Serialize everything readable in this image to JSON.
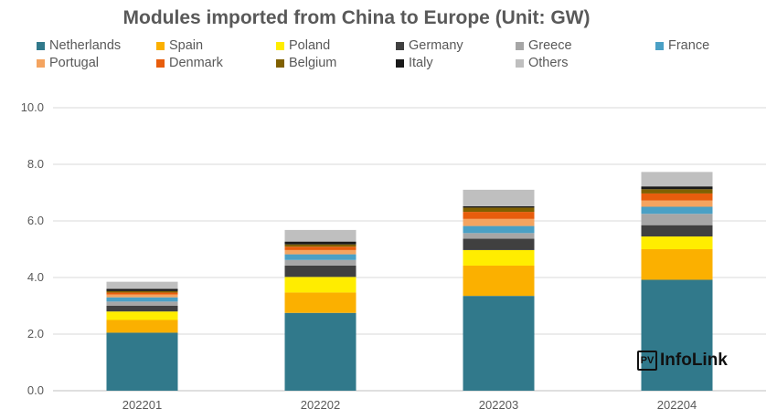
{
  "chart_data": {
    "type": "bar",
    "stacked": true,
    "title": "Modules imported from China to Europe (Unit: GW)",
    "categories": [
      "202201",
      "202202",
      "202203",
      "202204"
    ],
    "ylim": [
      0,
      10
    ],
    "yticks": [
      "0.0",
      "2.0",
      "4.0",
      "6.0",
      "8.0",
      "10.0"
    ],
    "grid": true,
    "legend_position": "top",
    "series": [
      {
        "name": "Netherlands",
        "color": "#31798b",
        "values": [
          2.05,
          2.75,
          3.35,
          3.92
        ]
      },
      {
        "name": "Spain",
        "color": "#fbb000",
        "values": [
          0.45,
          0.72,
          1.07,
          1.08
        ]
      },
      {
        "name": "Poland",
        "color": "#ffed00",
        "values": [
          0.3,
          0.55,
          0.55,
          0.45
        ]
      },
      {
        "name": "Germany",
        "color": "#404040",
        "values": [
          0.2,
          0.4,
          0.4,
          0.4
        ]
      },
      {
        "name": "Greece",
        "color": "#a6a6a6",
        "values": [
          0.15,
          0.2,
          0.2,
          0.4
        ]
      },
      {
        "name": "France",
        "color": "#4aa0c5",
        "values": [
          0.15,
          0.2,
          0.25,
          0.25
        ]
      },
      {
        "name": "Portugal",
        "color": "#f4a460",
        "values": [
          0.1,
          0.15,
          0.25,
          0.22
        ]
      },
      {
        "name": "Denmark",
        "color": "#e85d0c",
        "values": [
          0.07,
          0.12,
          0.25,
          0.25
        ]
      },
      {
        "name": "Belgium",
        "color": "#806000",
        "values": [
          0.05,
          0.08,
          0.15,
          0.15
        ]
      },
      {
        "name": "Italy",
        "color": "#1a1a1a",
        "values": [
          0.08,
          0.1,
          0.05,
          0.1
        ]
      },
      {
        "name": "Others",
        "color": "#bfbfbf",
        "values": [
          0.25,
          0.41,
          0.58,
          0.51
        ]
      }
    ]
  },
  "logo": {
    "badge": "PV",
    "text": "InfoLink"
  }
}
